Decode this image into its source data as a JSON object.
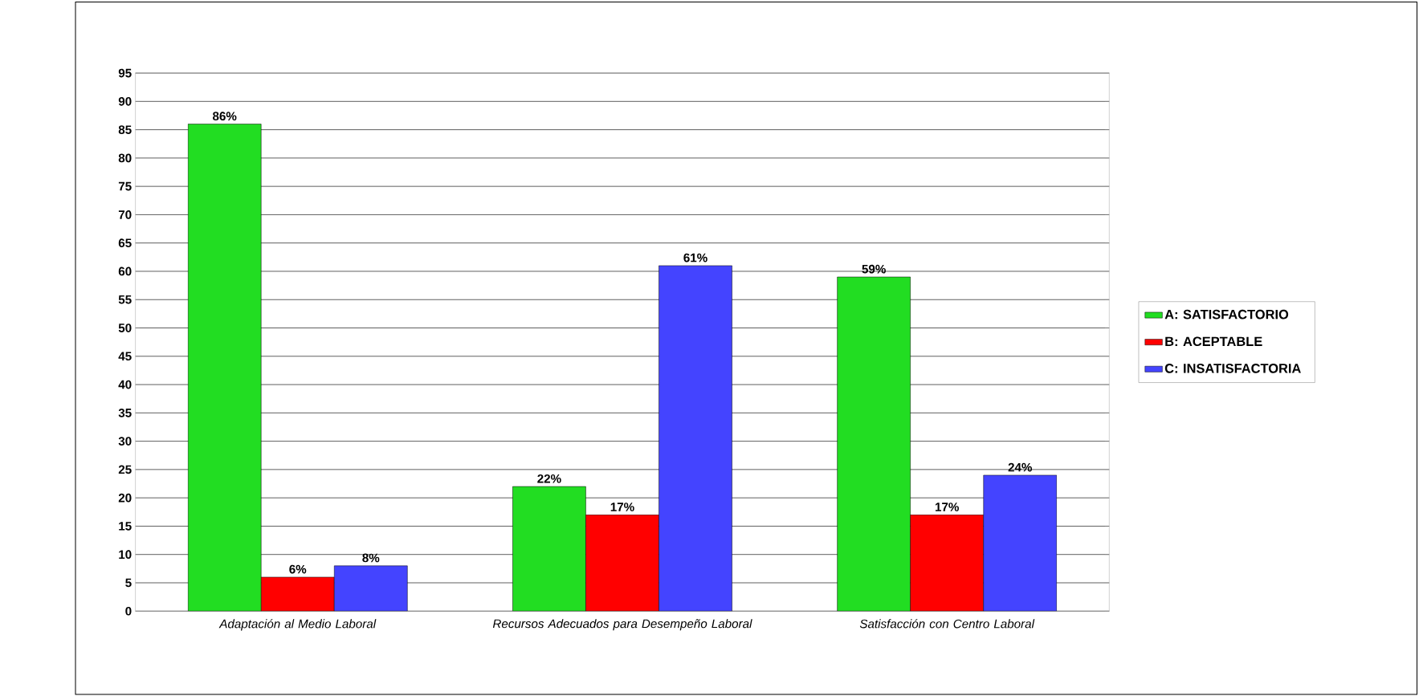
{
  "chart_data": {
    "type": "bar",
    "categories": [
      "Adaptación al Medio Laboral",
      "Recursos Adecuados para Desempeño Laboral",
      "Satisfacción con Centro Laboral"
    ],
    "series": [
      {
        "name": "A: SATISFACTORIO",
        "color": "#22dd22",
        "values": [
          86,
          22,
          59
        ],
        "value_labels": [
          "86%",
          "22%",
          "59%"
        ]
      },
      {
        "name": "B: ACEPTABLE",
        "color": "#ff0000",
        "values": [
          6,
          17,
          17
        ],
        "value_labels": [
          "6%",
          "17%",
          "17%"
        ]
      },
      {
        "name": "C: INSATISFACTORIA",
        "color": "#4444ff",
        "values": [
          8,
          61,
          24
        ],
        "value_labels": [
          "8%",
          "61%",
          "24%"
        ]
      }
    ],
    "ylim": [
      0,
      95
    ],
    "yticks": [
      0,
      5,
      10,
      15,
      20,
      25,
      30,
      35,
      40,
      45,
      50,
      55,
      60,
      65,
      70,
      75,
      80,
      85,
      90,
      95
    ],
    "grid": "y",
    "legend": "right"
  }
}
